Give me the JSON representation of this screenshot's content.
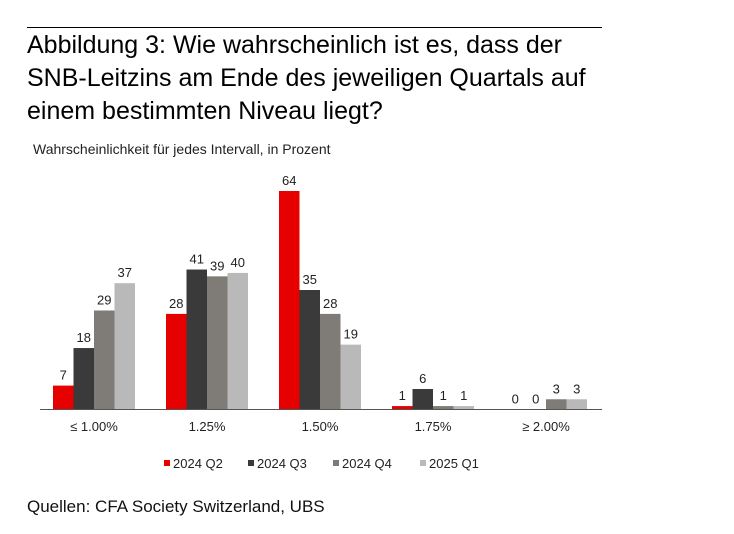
{
  "title": "Abbildung 3: Wie wahrscheinlich ist es, dass der SNB-Leitzins am Ende des jeweiligen Quartals auf einem bestimmten Niveau liegt?",
  "subtitle": "Wahrscheinlichkeit für jedes Intervall, in Prozent",
  "source": "Quellen: CFA Society Switzerland, UBS",
  "chart_data": {
    "type": "bar",
    "title": "Abbildung 3: Wie wahrscheinlich ist es, dass der SNB-Leitzins am Ende des jeweiligen Quartals auf einem bestimmten Niveau liegt?",
    "ylabel": "Wahrscheinlichkeit für jedes Intervall, in Prozent",
    "xlabel": "",
    "categories": [
      "≤ 1.00%",
      "1.25%",
      "1.50%",
      "1.75%",
      "≥ 2.00%"
    ],
    "series": [
      {
        "name": "2024 Q2",
        "color": "#e60000",
        "values": [
          7,
          28,
          64,
          1,
          0
        ]
      },
      {
        "name": "2024 Q3",
        "color": "#3a3a3a",
        "values": [
          18,
          41,
          35,
          6,
          0
        ]
      },
      {
        "name": "2024 Q4",
        "color": "#7f7c77",
        "values": [
          29,
          39,
          28,
          1,
          3
        ]
      },
      {
        "name": "2025 Q1",
        "color": "#b9b9b9",
        "values": [
          37,
          40,
          19,
          1,
          3
        ]
      }
    ],
    "ylim": [
      0,
      64
    ],
    "grid": false,
    "legend": "bottom"
  }
}
